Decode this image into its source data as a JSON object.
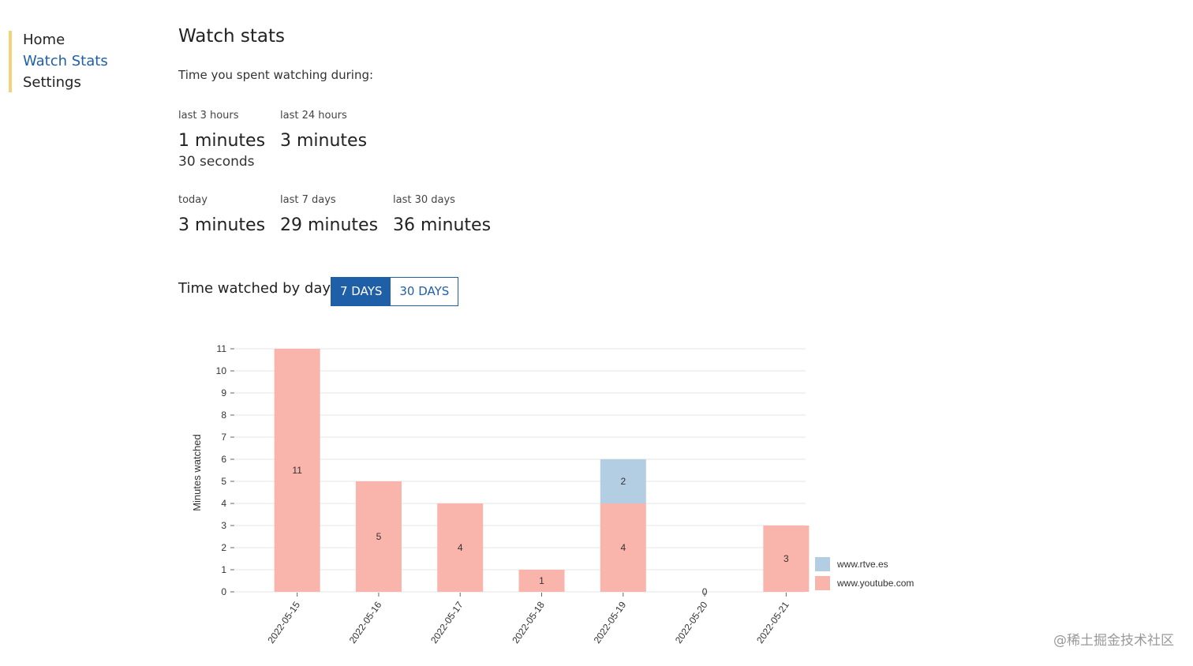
{
  "sidebar": {
    "items": [
      {
        "label": "Home"
      },
      {
        "label": "Watch Stats"
      },
      {
        "label": "Settings"
      }
    ]
  },
  "page": {
    "title": "Watch stats",
    "subtitle": "Time you spent watching during:"
  },
  "stats": {
    "last3h": {
      "label": "last 3 hours",
      "value": "1 minutes",
      "sub": "30 seconds"
    },
    "last24h": {
      "label": "last 24 hours",
      "value": "3 minutes"
    },
    "today": {
      "label": "today",
      "value": "3 minutes"
    },
    "last7d": {
      "label": "last 7 days",
      "value": "29 minutes"
    },
    "last30d": {
      "label": "last 30 days",
      "value": "36 minutes"
    }
  },
  "chart_section": {
    "title": "Time watched by day",
    "toggle": [
      {
        "label": "7 DAYS",
        "active": true
      },
      {
        "label": "30 DAYS",
        "active": false
      }
    ]
  },
  "watermark": "@稀土掘金技术社区",
  "colors": {
    "accent": "#1f5fa8",
    "sidebar_bar": "#f3d27a",
    "youtube": "#f9b4ab",
    "rtve": "#b3cde3"
  },
  "chart_data": {
    "type": "bar",
    "stacked": true,
    "categories": [
      "2022-05-15",
      "2022-05-16",
      "2022-05-17",
      "2022-05-18",
      "2022-05-19",
      "2022-05-20",
      "2022-05-21"
    ],
    "series": [
      {
        "name": "www.youtube.com",
        "color": "#f9b4ab",
        "values": [
          11,
          5,
          4,
          1,
          4,
          0,
          3
        ]
      },
      {
        "name": "www.rtve.es",
        "color": "#b3cde3",
        "values": [
          0,
          0,
          0,
          0,
          2,
          0,
          0
        ]
      }
    ],
    "ylabel": "Minutes watched",
    "xlabel": "",
    "ylim": [
      0,
      11
    ],
    "yticks": [
      0,
      1,
      2,
      3,
      4,
      5,
      6,
      7,
      8,
      9,
      10,
      11
    ],
    "grid": true,
    "legend": "right-bottom",
    "legend_order": [
      "www.rtve.es",
      "www.youtube.com"
    ]
  }
}
